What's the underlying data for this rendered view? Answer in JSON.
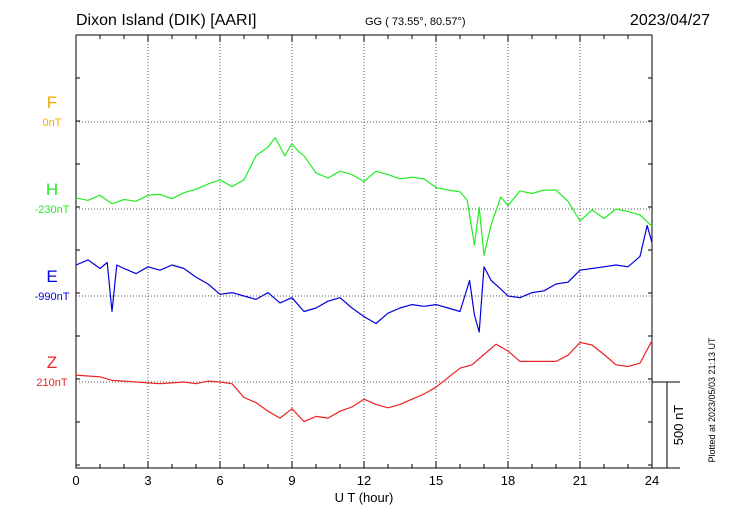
{
  "header": {
    "station": "Dixon Island (DIK)  [AARI]",
    "coords": "GG ( 73.55°,  80.57°)",
    "date": "2023/04/27"
  },
  "footer": {
    "plotted": "Plotted at 2023/05/03 21:13 UT"
  },
  "chart_data": {
    "type": "line",
    "xlabel": "U T (hour)",
    "xlim": [
      0,
      24
    ],
    "x_ticks": [
      "0",
      "3",
      "6",
      "9",
      "12",
      "15",
      "18",
      "21",
      "24"
    ],
    "scale_bar_label": "500 nT",
    "grid": true,
    "series": [
      {
        "name": "F",
        "baseline_label": "0nT",
        "color": "#f5a800",
        "points": []
      },
      {
        "name": "H",
        "baseline_label": "-230nT",
        "color": "#22ee22",
        "points": [
          [
            0,
            -165
          ],
          [
            0.5,
            -180
          ],
          [
            1,
            -150
          ],
          [
            1.5,
            -200
          ],
          [
            2,
            -175
          ],
          [
            2.5,
            -185
          ],
          [
            3,
            -150
          ],
          [
            3.5,
            -145
          ],
          [
            4,
            -170
          ],
          [
            4.5,
            -135
          ],
          [
            5,
            -115
          ],
          [
            5.5,
            -85
          ],
          [
            6,
            -60
          ],
          [
            6.5,
            -100
          ],
          [
            7,
            -60
          ],
          [
            7.5,
            80
          ],
          [
            8,
            130
          ],
          [
            8.3,
            185
          ],
          [
            8.7,
            80
          ],
          [
            9,
            150
          ],
          [
            9.3,
            100
          ],
          [
            9.5,
            80
          ],
          [
            10,
            -20
          ],
          [
            10.5,
            -50
          ],
          [
            11,
            -10
          ],
          [
            11.5,
            -30
          ],
          [
            12,
            -70
          ],
          [
            12.5,
            -10
          ],
          [
            13,
            -30
          ],
          [
            13.5,
            -55
          ],
          [
            14,
            -45
          ],
          [
            14.5,
            -55
          ],
          [
            15,
            -105
          ],
          [
            15.5,
            -120
          ],
          [
            16,
            -130
          ],
          [
            16.3,
            -180
          ],
          [
            16.6,
            -440
          ],
          [
            16.8,
            -220
          ],
          [
            17,
            -500
          ],
          [
            17.3,
            -320
          ],
          [
            17.7,
            -160
          ],
          [
            18,
            -210
          ],
          [
            18.5,
            -125
          ],
          [
            19,
            -140
          ],
          [
            19.5,
            -120
          ],
          [
            20,
            -120
          ],
          [
            20.5,
            -185
          ],
          [
            21,
            -300
          ],
          [
            21.5,
            -235
          ],
          [
            22,
            -285
          ],
          [
            22.5,
            -230
          ],
          [
            23,
            -245
          ],
          [
            23.5,
            -265
          ],
          [
            24,
            -330
          ]
        ]
      },
      {
        "name": "E",
        "baseline_label": "-990nT",
        "color": "#0000dd",
        "points": [
          [
            0,
            -810
          ],
          [
            0.5,
            -780
          ],
          [
            1,
            -830
          ],
          [
            1.3,
            -795
          ],
          [
            1.5,
            -1080
          ],
          [
            1.7,
            -810
          ],
          [
            2,
            -830
          ],
          [
            2.5,
            -860
          ],
          [
            3,
            -820
          ],
          [
            3.5,
            -840
          ],
          [
            4,
            -810
          ],
          [
            4.5,
            -830
          ],
          [
            5,
            -880
          ],
          [
            5.5,
            -920
          ],
          [
            6,
            -980
          ],
          [
            6.5,
            -970
          ],
          [
            7,
            -990
          ],
          [
            7.5,
            -1010
          ],
          [
            8,
            -970
          ],
          [
            8.5,
            -1030
          ],
          [
            9,
            -1000
          ],
          [
            9.5,
            -1080
          ],
          [
            10,
            -1060
          ],
          [
            10.5,
            -1020
          ],
          [
            11,
            -1000
          ],
          [
            11.5,
            -1060
          ],
          [
            12,
            -1110
          ],
          [
            12.5,
            -1150
          ],
          [
            13,
            -1090
          ],
          [
            13.5,
            -1060
          ],
          [
            14,
            -1040
          ],
          [
            14.5,
            -1050
          ],
          [
            15,
            -1040
          ],
          [
            15.5,
            -1060
          ],
          [
            16,
            -1080
          ],
          [
            16.4,
            -900
          ],
          [
            16.6,
            -1100
          ],
          [
            16.8,
            -1200
          ],
          [
            17,
            -820
          ],
          [
            17.3,
            -900
          ],
          [
            17.7,
            -950
          ],
          [
            18,
            -990
          ],
          [
            18.5,
            -1000
          ],
          [
            19,
            -970
          ],
          [
            19.5,
            -960
          ],
          [
            20,
            -920
          ],
          [
            20.5,
            -910
          ],
          [
            21,
            -840
          ],
          [
            21.5,
            -830
          ],
          [
            22,
            -820
          ],
          [
            22.5,
            -810
          ],
          [
            23,
            -820
          ],
          [
            23.5,
            -760
          ],
          [
            23.8,
            -580
          ],
          [
            24,
            -680
          ]
        ]
      },
      {
        "name": "Z",
        "baseline_label": "210nT",
        "color": "#ee2222",
        "points": [
          [
            0,
            250
          ],
          [
            0.5,
            245
          ],
          [
            1,
            240
          ],
          [
            1.5,
            220
          ],
          [
            2,
            215
          ],
          [
            2.5,
            210
          ],
          [
            3,
            205
          ],
          [
            3.5,
            200
          ],
          [
            4,
            205
          ],
          [
            4.5,
            210
          ],
          [
            5,
            200
          ],
          [
            5.5,
            215
          ],
          [
            6,
            210
          ],
          [
            6.5,
            200
          ],
          [
            7,
            120
          ],
          [
            7.5,
            90
          ],
          [
            8,
            40
          ],
          [
            8.5,
            0
          ],
          [
            9,
            55
          ],
          [
            9.5,
            -20
          ],
          [
            10,
            10
          ],
          [
            10.5,
            0
          ],
          [
            11,
            40
          ],
          [
            11.5,
            65
          ],
          [
            12,
            110
          ],
          [
            12.5,
            80
          ],
          [
            13,
            60
          ],
          [
            13.5,
            80
          ],
          [
            14,
            110
          ],
          [
            14.5,
            140
          ],
          [
            15,
            180
          ],
          [
            15.5,
            235
          ],
          [
            16,
            290
          ],
          [
            16.5,
            310
          ],
          [
            17,
            370
          ],
          [
            17.5,
            430
          ],
          [
            18,
            390
          ],
          [
            18.5,
            330
          ],
          [
            19,
            330
          ],
          [
            19.5,
            330
          ],
          [
            20,
            330
          ],
          [
            20.5,
            365
          ],
          [
            21,
            440
          ],
          [
            21.5,
            425
          ],
          [
            22,
            370
          ],
          [
            22.5,
            310
          ],
          [
            23,
            300
          ],
          [
            23.5,
            320
          ],
          [
            24,
            450
          ]
        ]
      }
    ]
  }
}
